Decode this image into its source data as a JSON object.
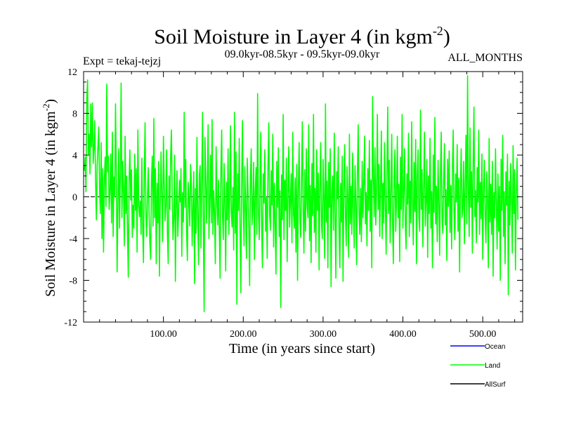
{
  "chart_data": {
    "type": "line",
    "title": "Soil Moisture in Layer 4 (in kgm",
    "title_sup": "-2",
    "title_close": ")",
    "subtitle_left": "Expt = tekaj-tejzj",
    "subtitle_center": "09.0kyr-08.5kyr - 09.5kyr-09.0kyr",
    "subtitle_right": "ALL_MONTHS",
    "xlabel": "Time (in years since start)",
    "ylabel": "Soil Moisture in Layer 4 (in kgm",
    "ylabel_sup": "-2",
    "ylabel_close": ")",
    "xlim": [
      0,
      550
    ],
    "ylim": [
      -12,
      12
    ],
    "xticks": [
      100,
      200,
      300,
      400,
      500
    ],
    "xtick_labels": [
      "100.00",
      "200.00",
      "300.00",
      "400.00",
      "500.00"
    ],
    "yticks": [
      -12,
      -8,
      -4,
      0,
      4,
      8,
      12
    ],
    "ytick_labels": [
      "-12",
      "-8",
      "-4",
      "0",
      "4",
      "8",
      "12"
    ],
    "zero_line": true,
    "legend_position": "bottom-right",
    "legend": [
      {
        "name": "Ocean",
        "color": "#0000ff"
      },
      {
        "name": "Land",
        "color": "#00ff00"
      },
      {
        "name": "AllSurf",
        "color": "#000000"
      }
    ],
    "series": [
      {
        "name": "Land",
        "color": "#00ff00",
        "x_start": 1,
        "x_step": 1,
        "values": [
          2.5,
          3.8,
          0.5,
          9.5,
          11.2,
          4.1,
          6.0,
          2.2,
          8.9,
          4.8,
          9.0,
          3.2,
          4.6,
          7.3,
          1.5,
          -2.2,
          3.0,
          4.9,
          6.7,
          0.8,
          -1.6,
          5.2,
          -4.0,
          2.7,
          -5.3,
          1.6,
          3.8,
          -0.9,
          10.8,
          2.4,
          3.9,
          -1.2,
          0.5,
          4.1,
          -2.5,
          6.2,
          -3.8,
          1.9,
          0.0,
          8.9,
          2.4,
          -7.2,
          -0.5,
          4.6,
          -3.0,
          2.2,
          10.9,
          -2.0,
          3.4,
          0.7,
          -4.7,
          5.8,
          -1.6,
          2.0,
          -3.3,
          -7.7,
          1.6,
          4.5,
          -0.3,
          2.6,
          -3.9,
          -0.8,
          -3.0,
          4.1,
          -1.3,
          2.7,
          -5.3,
          6.4,
          -0.7,
          -1.9,
          -0.4,
          -3.6,
          3.7,
          -2.9,
          -6.3,
          2.0,
          7.1,
          -1.7,
          -3.8,
          0.0,
          2.8,
          -1.5,
          -4.4,
          -6.0,
          1.5,
          3.9,
          -2.8,
          7.5,
          -2.0,
          2.7,
          -6.4,
          1.3,
          -2.5,
          3.4,
          -7.6,
          -0.8,
          4.3,
          -0.2,
          -4.3,
          5.8,
          1.4,
          -2.3,
          -0.9,
          4.5,
          -3.5,
          -6.4,
          2.0,
          -1.2,
          3.8,
          6.4,
          0.3,
          -4.1,
          -2.0,
          4.0,
          -8.1,
          -0.9,
          2.5,
          -3.8,
          -1.5,
          1.6,
          -0.5,
          2.7,
          -5.7,
          0.4,
          -2.4,
          8.1,
          -1.0,
          3.6,
          -3.3,
          -6.1,
          1.4,
          -0.2,
          -2.8,
          3.1,
          1.3,
          -4.7,
          -1.1,
          2.4,
          -8.3,
          0.8,
          -3.5,
          5.7,
          -1.9,
          -6.5,
          2.1,
          3.0,
          -4.9,
          1.1,
          8.1,
          -3.2,
          -11.0,
          5.7,
          2.0,
          -2.5,
          1.4,
          6.9,
          -4.0,
          -0.7,
          4.0,
          -2.5,
          7.4,
          -3.6,
          0.6,
          -1.5,
          -6.4,
          4.8,
          -0.3,
          -2.7,
          1.6,
          -3.3,
          -7.8,
          2.6,
          6.4,
          -1.8,
          -4.1,
          3.2,
          -0.6,
          -7.1,
          1.4,
          -2.2,
          4.6,
          -3.6,
          -0.2,
          6.8,
          -1.5,
          -2.9,
          0.9,
          -5.1,
          8.1,
          -3.5,
          4.3,
          -10.3,
          2.2,
          -1.3,
          5.6,
          -3.4,
          -9.2,
          1.4,
          7.3,
          -0.9,
          -4.7,
          2.9,
          -1.0,
          -5.9,
          3.7,
          0.5,
          -3.2,
          -8.5,
          1.8,
          4.6,
          -2.7,
          -1.1,
          3.3,
          -6.0,
          0.4,
          2.8,
          -3.6,
          9.9,
          -1.4,
          -4.1,
          0.9,
          6.2,
          -2.7,
          -6.8,
          2.2,
          -0.6,
          4.5,
          -3.3,
          -0.1,
          -5.9,
          3.0,
          7.1,
          -1.6,
          -3.2,
          2.5,
          -0.8,
          6.0,
          -4.8,
          1.3,
          -2.6,
          -7.4,
          3.4,
          -1.0,
          4.7,
          -3.8,
          0.6,
          -10.6,
          2.1,
          -2.2,
          7.9,
          -4.1,
          1.6,
          -1.3,
          3.7,
          -6.2,
          0.2,
          4.8,
          -2.9,
          -0.5,
          2.2,
          -4.4,
          6.2,
          -1.7,
          -3.0,
          1.8,
          -5.3,
          3.1,
          -8.0,
          0.6,
          5.2,
          -2.1,
          -3.9,
          1.5,
          7.2,
          -1.2,
          -5.4,
          2.6,
          -3.3,
          4.6,
          -0.7,
          -2.0,
          6.9,
          -4.2,
          1.1,
          -6.3,
          3.2,
          -1.8,
          7.9,
          -3.4,
          0.8,
          -5.3,
          4.5,
          -1.3,
          2.3,
          -7.0,
          1.0,
          5.2,
          -2.7,
          -4.0,
          3.6,
          -0.4,
          -5.9,
          8.9,
          -2.4,
          1.5,
          -6.8,
          3.3,
          -1.0,
          4.6,
          -8.6,
          0.5,
          2.0,
          -3.2,
          6.1,
          -1.6,
          -7.8,
          2.4,
          -0.2,
          4.8,
          -3.4,
          -6.8,
          1.3,
          -2.4,
          3.9,
          -8.1,
          0.6,
          5.0,
          -1.8,
          -4.7,
          2.9,
          -0.3,
          -5.8,
          6.0,
          -2.6,
          1.0,
          -3.6,
          4.2,
          -1.2,
          -4.9,
          3.0,
          -0.5,
          -6.5,
          2.2,
          6.9,
          -1.5,
          -3.6,
          0.8,
          -4.3,
          3.4,
          -2.0,
          1.2,
          5.8,
          -2.6,
          0.4,
          -4.7,
          2.7,
          -1.3,
          5.4,
          -3.3,
          1.6,
          -6.8,
          9.6,
          2.1,
          -1.9,
          4.7,
          -2.7,
          0.5,
          7.9,
          -1.2,
          3.1,
          -3.8,
          0.9,
          6.3,
          -4.0,
          1.3,
          -2.5,
          5.2,
          -0.8,
          -5.5,
          2.6,
          8.6,
          -1.6,
          3.5,
          -4.4,
          0.2,
          6.0,
          -2.3,
          -6.4,
          1.5,
          4.5,
          -3.3,
          -0.3,
          5.8,
          -2.0,
          1.2,
          -6.2,
          3.8,
          -1.2,
          7.9,
          -3.0,
          0.6,
          4.6,
          -2.6,
          -5.0,
          2.2,
          -0.7,
          6.1,
          -3.8,
          1.5,
          -2.5,
          7.2,
          -0.4,
          -4.6,
          3.3,
          -1.4,
          5.5,
          -6.4,
          1.9,
          4.5,
          -2.0,
          -3.3,
          8.3,
          -1.2,
          2.6,
          -4.8,
          0.8,
          6.2,
          -2.8,
          -0.4,
          3.6,
          -5.8,
          2.0,
          -1.6,
          5.6,
          -3.0,
          0.5,
          -6.8,
          4.0,
          -1.5,
          7.6,
          -2.6,
          1.0,
          -4.3,
          3.5,
          -0.3,
          -5.6,
          2.0,
          6.2,
          -1.9,
          -3.5,
          1.4,
          5.1,
          -2.7,
          0.7,
          -6.1,
          3.6,
          -0.9,
          4.4,
          -3.4,
          1.1,
          -5.0,
          2.6,
          6.4,
          -1.2,
          -4.1,
          2.2,
          -0.5,
          5.0,
          -3.3,
          1.8,
          -7.2,
          0.7,
          4.6,
          -2.0,
          -1.0,
          3.4,
          -4.5,
          1.2,
          5.9,
          -2.6,
          11.6,
          0.4,
          -3.8,
          6.6,
          -1.0,
          2.4,
          -5.4,
          3.5,
          8.6,
          -1.9,
          0.6,
          -4.4,
          2.8,
          -0.5,
          6.4,
          -3.6,
          1.4,
          -2.1,
          4.1,
          -6.0,
          0.8,
          3.5,
          -1.8,
          -4.4,
          2.4,
          -0.3,
          -6.8,
          5.6,
          -2.4,
          1.2,
          -3.6,
          3.4,
          -7.6,
          0.4,
          -2.0,
          4.6,
          -0.6,
          -5.0,
          2.2,
          -3.3,
          1.0,
          -8.0,
          3.6,
          -1.3,
          5.9,
          -3.8,
          0.5,
          -6.4,
          2.4,
          -0.8,
          4.1,
          -9.4,
          1.5,
          -2.7,
          3.2,
          -0.4,
          -5.4,
          4.9,
          -1.6,
          2.6,
          -7.0,
          0.3,
          3.7,
          -2.2
        ]
      }
    ]
  }
}
